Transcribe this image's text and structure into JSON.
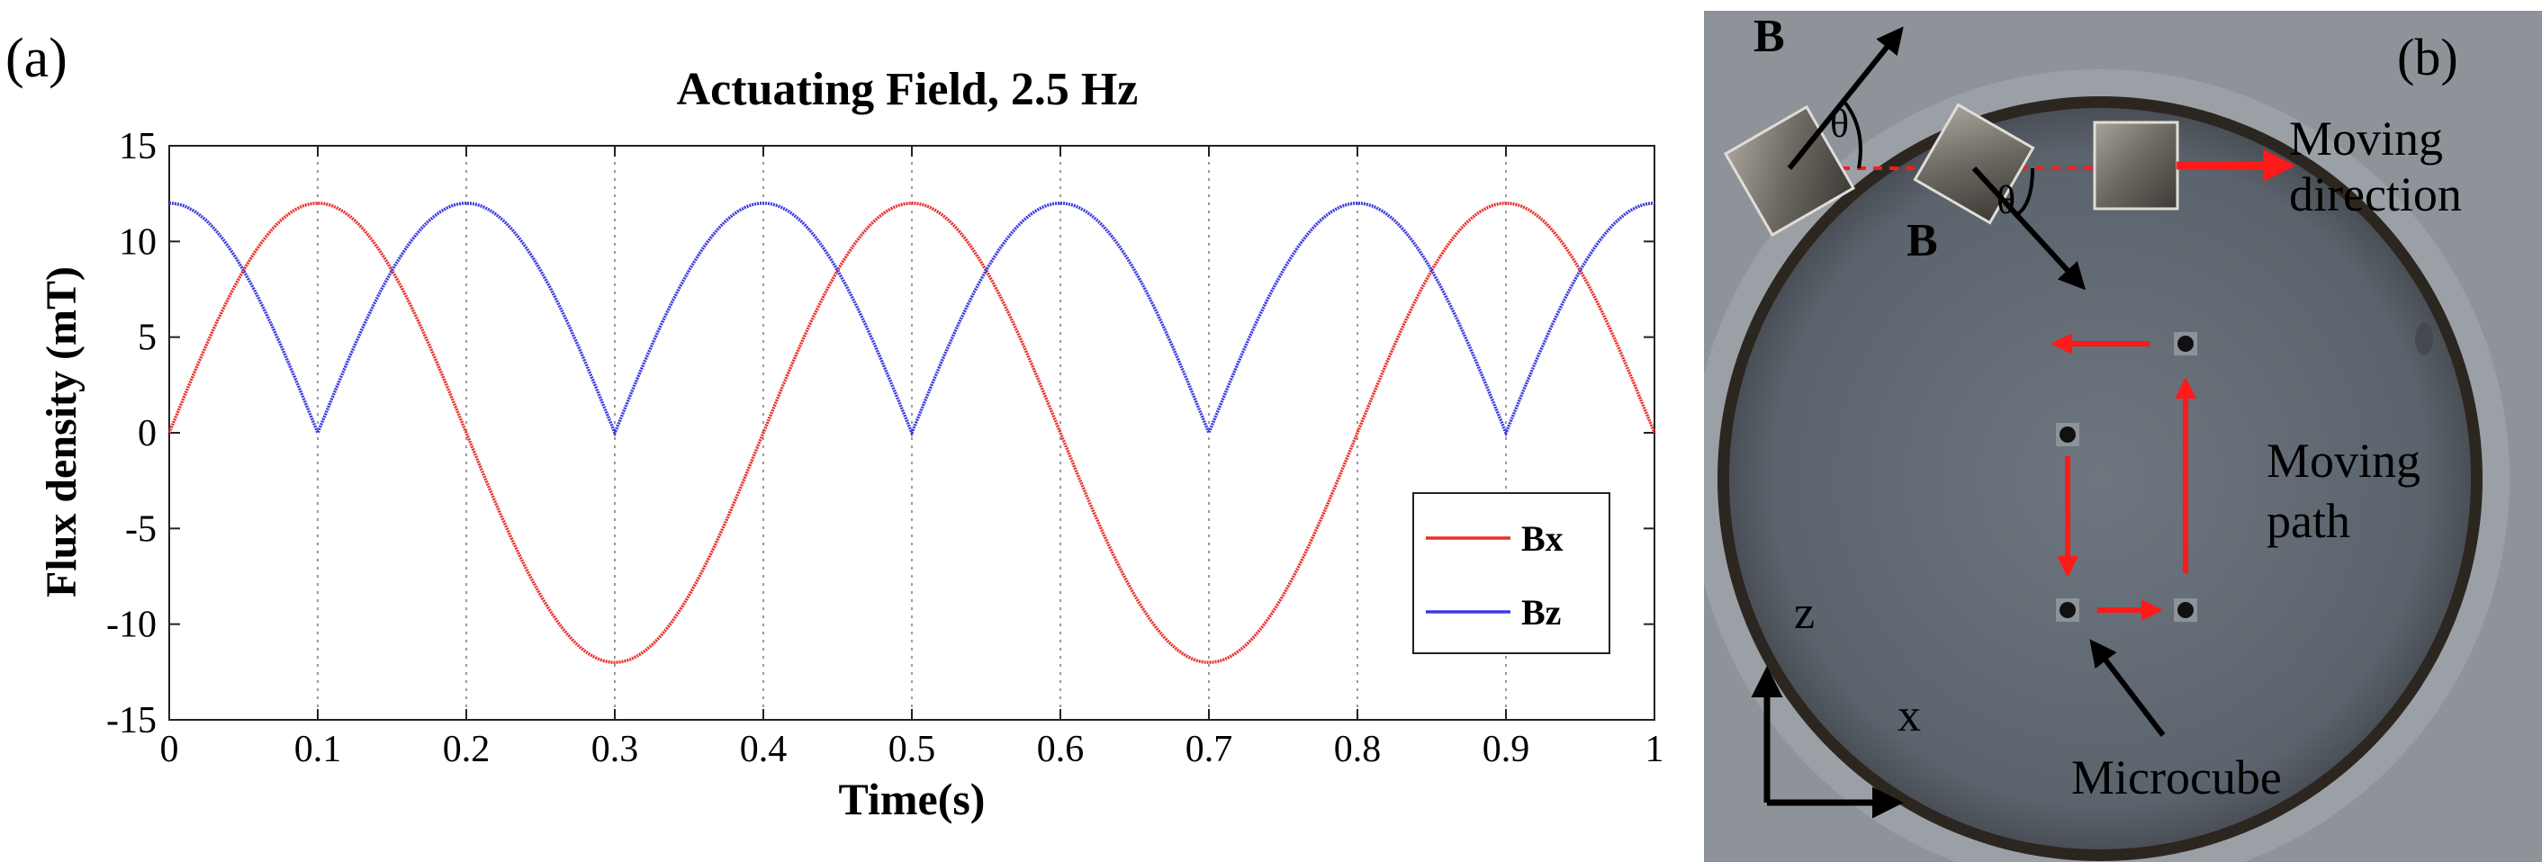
{
  "panels": {
    "left_label": "(a)",
    "right_label": "(b)"
  },
  "chart_data": {
    "type": "line",
    "title": "Actuating Field, 2.5 Hz",
    "xlabel": "Time(s)",
    "ylabel": "Flux density (mT)",
    "xlim": [
      0,
      1
    ],
    "ylim": [
      -15,
      15
    ],
    "xticks": [
      0,
      0.1,
      0.2,
      0.3,
      0.4,
      0.5,
      0.6,
      0.7,
      0.8,
      0.9,
      1
    ],
    "xtick_labels": [
      "0",
      "0.1",
      "0.2",
      "0.3",
      "0.4",
      "0.5",
      "0.6",
      "0.7",
      "0.8",
      "0.9",
      "1"
    ],
    "yticks": [
      -15,
      -10,
      -5,
      0,
      5,
      10,
      15
    ],
    "ytick_labels": [
      "-15",
      "-10",
      "-5",
      "0",
      "5",
      "10",
      "15"
    ],
    "grid": "vertical dotted",
    "legend_position": "lower-right",
    "series": [
      {
        "name": "Bx",
        "color": "#e8302a",
        "x": [
          0,
          0.025,
          0.05,
          0.075,
          0.1,
          0.125,
          0.15,
          0.175,
          0.2,
          0.225,
          0.25,
          0.275,
          0.3,
          0.325,
          0.35,
          0.375,
          0.4,
          0.425,
          0.45,
          0.475,
          0.5,
          0.525,
          0.55,
          0.575,
          0.6,
          0.625,
          0.65,
          0.675,
          0.7,
          0.725,
          0.75,
          0.775,
          0.8,
          0.825,
          0.85,
          0.875,
          0.9,
          0.925,
          0.95,
          0.975,
          1
        ],
        "values": [
          0,
          4.59,
          8.49,
          11.09,
          12,
          11.09,
          8.49,
          4.59,
          0,
          -4.59,
          -8.49,
          -11.09,
          -12,
          -11.09,
          -8.49,
          -4.59,
          0,
          4.59,
          8.49,
          11.09,
          12,
          11.09,
          8.49,
          4.59,
          0,
          -4.59,
          -8.49,
          -11.09,
          -12,
          -11.09,
          -8.49,
          -4.59,
          0,
          4.59,
          8.49,
          11.09,
          12,
          11.09,
          8.49,
          4.59,
          0
        ]
      },
      {
        "name": "Bz",
        "color": "#3a3ae0",
        "x": [
          0,
          0.025,
          0.05,
          0.075,
          0.1,
          0.125,
          0.15,
          0.175,
          0.2,
          0.225,
          0.25,
          0.275,
          0.3,
          0.325,
          0.35,
          0.375,
          0.4,
          0.425,
          0.45,
          0.475,
          0.5,
          0.525,
          0.55,
          0.575,
          0.6,
          0.625,
          0.65,
          0.675,
          0.7,
          0.725,
          0.75,
          0.775,
          0.8,
          0.825,
          0.85,
          0.875,
          0.9,
          0.925,
          0.95,
          0.975,
          1
        ],
        "values": [
          12,
          11.09,
          8.49,
          4.59,
          0,
          4.59,
          8.49,
          11.09,
          12,
          11.09,
          8.49,
          4.59,
          0,
          4.59,
          8.49,
          11.09,
          12,
          11.09,
          8.49,
          4.59,
          0,
          4.59,
          8.49,
          11.09,
          12,
          11.09,
          8.49,
          4.59,
          0,
          4.59,
          8.49,
          11.09,
          12,
          11.09,
          8.49,
          4.59,
          0,
          4.59,
          8.49,
          11.09,
          12
        ]
      }
    ]
  },
  "photo_labels": {
    "field_top": "B",
    "field_bottom": "B",
    "angle_top": "θ",
    "angle_bottom": "θ",
    "moving_direction_1": "Moving",
    "moving_direction_2": "direction",
    "moving_path_1": "Moving",
    "moving_path_2": "path",
    "axis_z": "z",
    "axis_x": "x",
    "microcube": "Microcube"
  },
  "colors": {
    "photo_background": "#5e6670",
    "arrow_red": "#ff1a1a"
  }
}
